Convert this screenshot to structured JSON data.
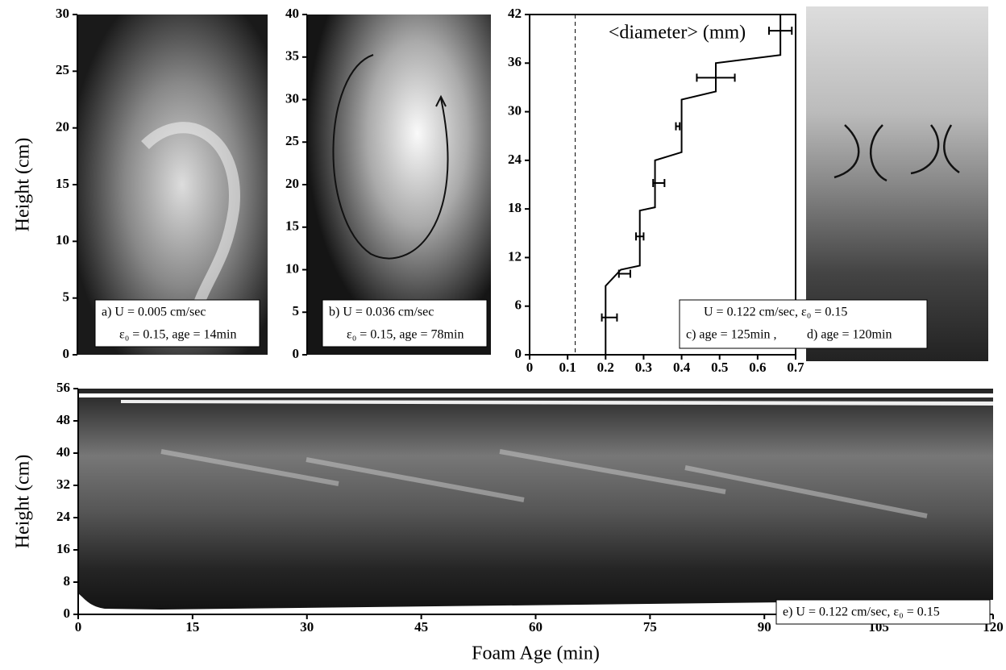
{
  "chart_data": [
    {
      "type": "image",
      "ylabel": "Height (cm)",
      "annotation": [
        "a) U = 0.005 cm/sec",
        "ε₀ = 0.15, age = 14min"
      ],
      "ylim": [
        0,
        30
      ],
      "yticks": [
        0,
        5,
        10,
        15,
        20,
        25,
        30
      ]
    },
    {
      "type": "image",
      "annotation": [
        "b) U = 0.036 cm/sec",
        "ε₀ = 0.15, age = 78min"
      ],
      "ylim": [
        0,
        40
      ],
      "yticks": [
        0,
        5,
        10,
        15,
        20,
        25,
        30,
        35,
        40
      ]
    },
    {
      "type": "line",
      "title": "<diameter> (mm)",
      "color": "#000000",
      "x": [
        0.2,
        0.2,
        0.24,
        0.29,
        0.29,
        0.33,
        0.33,
        0.4,
        0.4,
        0.49,
        0.49,
        0.66,
        0.66
      ],
      "values": [
        0,
        8.5,
        10.5,
        11,
        17.8,
        18.2,
        24,
        25,
        31.5,
        32.5,
        36,
        37,
        42
      ],
      "error_bars": {
        "x": [
          0.21,
          0.25,
          0.29,
          0.34,
          0.39,
          0.49,
          0.66
        ],
        "values": [
          4.6,
          10,
          14.6,
          21.2,
          28.2,
          34.2,
          40
        ],
        "xerr": [
          0.02,
          0.015,
          0.01,
          0.015,
          0.005,
          0.05,
          0.03
        ]
      },
      "reference_x": 0.12,
      "annotation": [
        "U = 0.122 cm/sec, ε₀ = 0.15",
        "c) age = 125min ,",
        "d) age = 120min"
      ],
      "xlim": [
        0,
        0.7
      ],
      "xticks": [
        0,
        0.1,
        0.2,
        0.3,
        0.4,
        0.5,
        0.6,
        0.7
      ],
      "ylim": [
        0,
        42
      ],
      "yticks": [
        0,
        6,
        12,
        18,
        24,
        30,
        36,
        42
      ]
    },
    {
      "type": "image",
      "xlabel": "Foam Age (min)",
      "ylabel": "Height (cm)",
      "annotation": [
        "e) U = 0.122 cm/sec, ε₀ = 0.15"
      ],
      "xlim": [
        0,
        120
      ],
      "xticks": [
        0,
        15,
        30,
        45,
        60,
        75,
        90,
        105,
        120
      ],
      "ylim": [
        0,
        56
      ],
      "yticks": [
        0,
        8,
        16,
        24,
        32,
        40,
        48,
        56
      ]
    }
  ]
}
